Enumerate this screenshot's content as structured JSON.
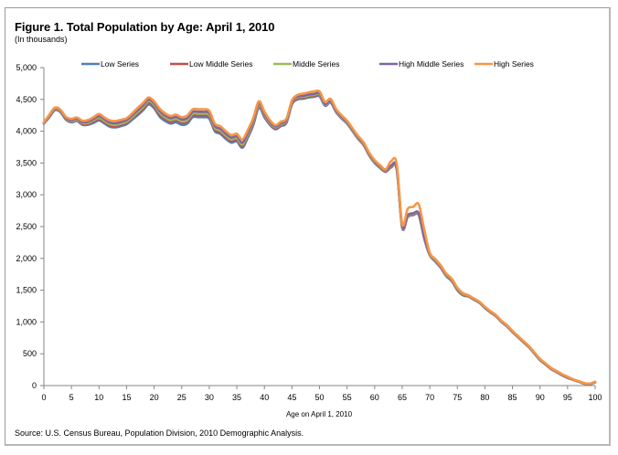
{
  "figure": {
    "title": "Figure 1.  Total Population by Age:  April 1, 2010",
    "subtitle": "(In thousands)",
    "source": "Source:  U.S. Census Bureau, Population Division, 2010 Demographic Analysis."
  },
  "chart_data": {
    "type": "line",
    "title": "Figure 1.  Total Population by Age:  April 1, 2010",
    "subtitle": "(In thousands)",
    "xlabel": "Age on April 1, 2010",
    "ylabel": "",
    "xlim": [
      0,
      100
    ],
    "ylim": [
      0,
      5000
    ],
    "x_ticks": [
      0,
      5,
      10,
      15,
      20,
      25,
      30,
      35,
      40,
      45,
      50,
      55,
      60,
      65,
      70,
      75,
      80,
      85,
      90,
      95,
      100
    ],
    "y_ticks": [
      0,
      500,
      1000,
      1500,
      2000,
      2500,
      3000,
      3500,
      4000,
      4500,
      5000
    ],
    "y_tick_labels": [
      "0",
      "500",
      "1,000",
      "1,500",
      "2,000",
      "2,500",
      "3,000",
      "3,500",
      "4,000",
      "4,500",
      "5,000"
    ],
    "grid": false,
    "legend_position": "top",
    "x": [
      0,
      1,
      2,
      3,
      4,
      5,
      6,
      7,
      8,
      9,
      10,
      11,
      12,
      13,
      14,
      15,
      16,
      17,
      18,
      19,
      20,
      21,
      22,
      23,
      24,
      25,
      26,
      27,
      28,
      29,
      30,
      31,
      32,
      33,
      34,
      35,
      36,
      37,
      38,
      39,
      40,
      41,
      42,
      43,
      44,
      45,
      46,
      47,
      48,
      49,
      50,
      51,
      52,
      53,
      54,
      55,
      56,
      57,
      58,
      59,
      60,
      61,
      62,
      63,
      64,
      65,
      66,
      67,
      68,
      69,
      70,
      71,
      72,
      73,
      74,
      75,
      76,
      77,
      78,
      79,
      80,
      81,
      82,
      83,
      84,
      85,
      86,
      87,
      88,
      89,
      90,
      91,
      92,
      93,
      94,
      95,
      96,
      97,
      98,
      99,
      100
    ],
    "series": [
      {
        "name": "Low Series",
        "color": "#4f81bd",
        "values": [
          4120,
          4220,
          4330,
          4300,
          4180,
          4140,
          4160,
          4100,
          4100,
          4130,
          4170,
          4120,
          4070,
          4060,
          4080,
          4110,
          4180,
          4250,
          4330,
          4420,
          4360,
          4230,
          4160,
          4120,
          4140,
          4100,
          4120,
          4220,
          4220,
          4220,
          4200,
          4000,
          3960,
          3880,
          3820,
          3840,
          3740,
          3900,
          4100,
          4370,
          4220,
          4100,
          4030,
          4080,
          4130,
          4420,
          4500,
          4510,
          4530,
          4540,
          4550,
          4400,
          4450,
          4300,
          4200,
          4120,
          4000,
          3880,
          3780,
          3620,
          3500,
          3420,
          3360,
          3430,
          3400,
          2480,
          2650,
          2680,
          2680,
          2310,
          2050,
          1950,
          1850,
          1720,
          1640,
          1500,
          1420,
          1400,
          1350,
          1300,
          1220,
          1150,
          1090,
          1000,
          930,
          840,
          760,
          680,
          600,
          500,
          400,
          330,
          260,
          210,
          160,
          120,
          90,
          60,
          30,
          20,
          50
        ]
      },
      {
        "name": "Low Middle Series",
        "color": "#c0504d",
        "values": [
          4125,
          4230,
          4340,
          4310,
          4190,
          4150,
          4170,
          4110,
          4115,
          4150,
          4190,
          4140,
          4090,
          4080,
          4100,
          4130,
          4200,
          4275,
          4355,
          4450,
          4390,
          4260,
          4190,
          4150,
          4170,
          4130,
          4150,
          4250,
          4250,
          4250,
          4230,
          4025,
          3985,
          3905,
          3845,
          3865,
          3765,
          3925,
          4125,
          4395,
          4240,
          4115,
          4045,
          4095,
          4145,
          4435,
          4515,
          4525,
          4545,
          4555,
          4565,
          4410,
          4460,
          4310,
          4210,
          4130,
          4010,
          3890,
          3790,
          3630,
          3510,
          3430,
          3370,
          3440,
          3410,
          2490,
          2660,
          2690,
          2690,
          2320,
          2060,
          1960,
          1860,
          1730,
          1650,
          1510,
          1430,
          1405,
          1355,
          1305,
          1225,
          1155,
          1095,
          1005,
          935,
          845,
          765,
          685,
          605,
          505,
          405,
          335,
          265,
          215,
          165,
          125,
          92,
          62,
          32,
          22,
          52
        ]
      },
      {
        "name": "Middle Series",
        "color": "#9bbb59",
        "values": [
          4130,
          4240,
          4350,
          4320,
          4200,
          4160,
          4180,
          4125,
          4130,
          4170,
          4210,
          4160,
          4110,
          4100,
          4120,
          4150,
          4220,
          4300,
          4380,
          4475,
          4415,
          4290,
          4215,
          4175,
          4195,
          4155,
          4175,
          4275,
          4275,
          4275,
          4255,
          4050,
          4010,
          3930,
          3870,
          3890,
          3790,
          3950,
          4150,
          4415,
          4260,
          4130,
          4060,
          4110,
          4160,
          4450,
          4530,
          4540,
          4560,
          4570,
          4580,
          4420,
          4470,
          4320,
          4220,
          4140,
          4020,
          3900,
          3800,
          3640,
          3520,
          3440,
          3380,
          3450,
          3420,
          2500,
          2670,
          2700,
          2700,
          2330,
          2070,
          1970,
          1870,
          1740,
          1660,
          1520,
          1440,
          1410,
          1360,
          1310,
          1230,
          1160,
          1100,
          1010,
          940,
          850,
          770,
          690,
          610,
          510,
          410,
          340,
          270,
          220,
          170,
          130,
          95,
          65,
          35,
          25,
          55
        ]
      },
      {
        "name": "High Middle Series",
        "color": "#8064a2",
        "values": [
          4135,
          4250,
          4360,
          4330,
          4210,
          4175,
          4195,
          4140,
          4150,
          4190,
          4235,
          4185,
          4135,
          4125,
          4145,
          4175,
          4250,
          4330,
          4410,
          4500,
          4440,
          4320,
          4245,
          4205,
          4225,
          4185,
          4205,
          4305,
          4305,
          4305,
          4285,
          4080,
          4040,
          3960,
          3900,
          3920,
          3820,
          3980,
          4175,
          4440,
          4280,
          4150,
          4075,
          4125,
          4175,
          4465,
          4545,
          4555,
          4575,
          4585,
          4595,
          4430,
          4480,
          4330,
          4230,
          4150,
          4030,
          3910,
          3810,
          3650,
          3530,
          3450,
          3390,
          3460,
          3430,
          2510,
          2680,
          2710,
          2710,
          2340,
          2080,
          1980,
          1880,
          1750,
          1670,
          1530,
          1450,
          1415,
          1365,
          1315,
          1235,
          1165,
          1105,
          1015,
          945,
          855,
          775,
          695,
          615,
          515,
          415,
          345,
          275,
          225,
          175,
          135,
          97,
          67,
          37,
          27,
          57
        ]
      },
      {
        "name": "High Series",
        "color": "#f79646",
        "values": [
          4140,
          4260,
          4370,
          4340,
          4225,
          4195,
          4215,
          4165,
          4175,
          4220,
          4270,
          4215,
          4170,
          4160,
          4180,
          4205,
          4280,
          4365,
          4445,
          4530,
          4470,
          4355,
          4280,
          4240,
          4260,
          4220,
          4245,
          4345,
          4345,
          4345,
          4320,
          4120,
          4080,
          4000,
          3940,
          3960,
          3870,
          4020,
          4210,
          4470,
          4310,
          4175,
          4095,
          4150,
          4200,
          4485,
          4570,
          4590,
          4610,
          4625,
          4625,
          4460,
          4510,
          4350,
          4250,
          4165,
          4045,
          3925,
          3825,
          3665,
          3545,
          3465,
          3400,
          3530,
          3490,
          2540,
          2780,
          2810,
          2850,
          2450,
          2090,
          1990,
          1890,
          1760,
          1680,
          1540,
          1455,
          1420,
          1370,
          1320,
          1240,
          1170,
          1110,
          1020,
          950,
          860,
          780,
          700,
          620,
          520,
          420,
          350,
          280,
          230,
          180,
          140,
          100,
          70,
          40,
          30,
          60
        ]
      }
    ]
  }
}
